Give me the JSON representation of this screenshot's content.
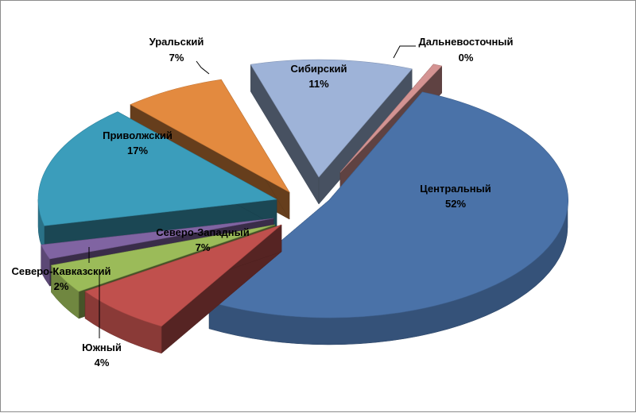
{
  "chart_data": {
    "type": "pie",
    "three_d": true,
    "exploded": true,
    "title": "",
    "slices": [
      {
        "name": "Центральный",
        "value": 52,
        "label": "52%",
        "color": "#4a72a8"
      },
      {
        "name": "Северо-Западный",
        "value": 7,
        "label": "7%",
        "color": "#c0504d"
      },
      {
        "name": "Южный",
        "value": 4,
        "label": "4%",
        "color": "#9bbb59"
      },
      {
        "name": "Северо-Кавказский",
        "value": 2,
        "label": "2%",
        "color": "#8064a2"
      },
      {
        "name": "Приволжский",
        "value": 17,
        "label": "17%",
        "color": "#3b9dbb"
      },
      {
        "name": "Уральский",
        "value": 7,
        "label": "7%",
        "color": "#e38a3f"
      },
      {
        "name": "Сибирский",
        "value": 11,
        "label": "11%",
        "color": "#9eb3d8"
      },
      {
        "name": "Дальневосточный",
        "value": 0,
        "label": "0%",
        "color": "#d49392"
      }
    ]
  }
}
